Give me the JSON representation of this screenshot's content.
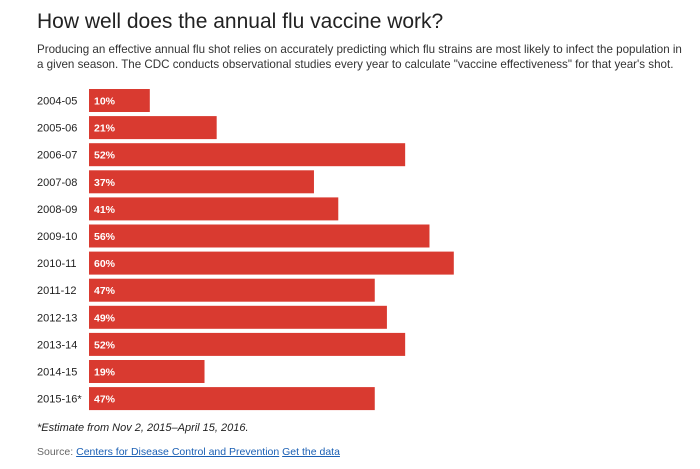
{
  "header": {
    "title": "How well does the annual flu vaccine work?",
    "subtitle": "Producing an effective annual flu shot relies on accurately predicting which flu strains are most likely to infect the population in a given season. The CDC conducts observational studies every year to calculate \"vaccine effectiveness\" for that year's shot."
  },
  "chart_data": {
    "type": "bar",
    "orientation": "horizontal",
    "categories": [
      "2004-05",
      "2005-06",
      "2006-07",
      "2007-08",
      "2008-09",
      "2009-10",
      "2010-11",
      "2011-12",
      "2012-13",
      "2013-14",
      "2014-15",
      "2015-16*"
    ],
    "values": [
      10,
      21,
      52,
      37,
      41,
      56,
      60,
      47,
      49,
      52,
      19,
      47
    ],
    "value_labels": [
      "10%",
      "21%",
      "52%",
      "37%",
      "41%",
      "56%",
      "60%",
      "47%",
      "49%",
      "52%",
      "19%",
      "47%"
    ],
    "xlim": [
      0,
      100
    ],
    "unit": "%",
    "grid": false,
    "colors": {
      "bar": "#d93a30",
      "bar_label": "#ffffff",
      "category_label": "#222222"
    }
  },
  "footer": {
    "footnote": "*Estimate from Nov 2, 2015–April 15, 2016.",
    "source_prefix": "Source:",
    "source_link": "Centers for Disease Control and Prevention",
    "data_link": "Get the data"
  }
}
